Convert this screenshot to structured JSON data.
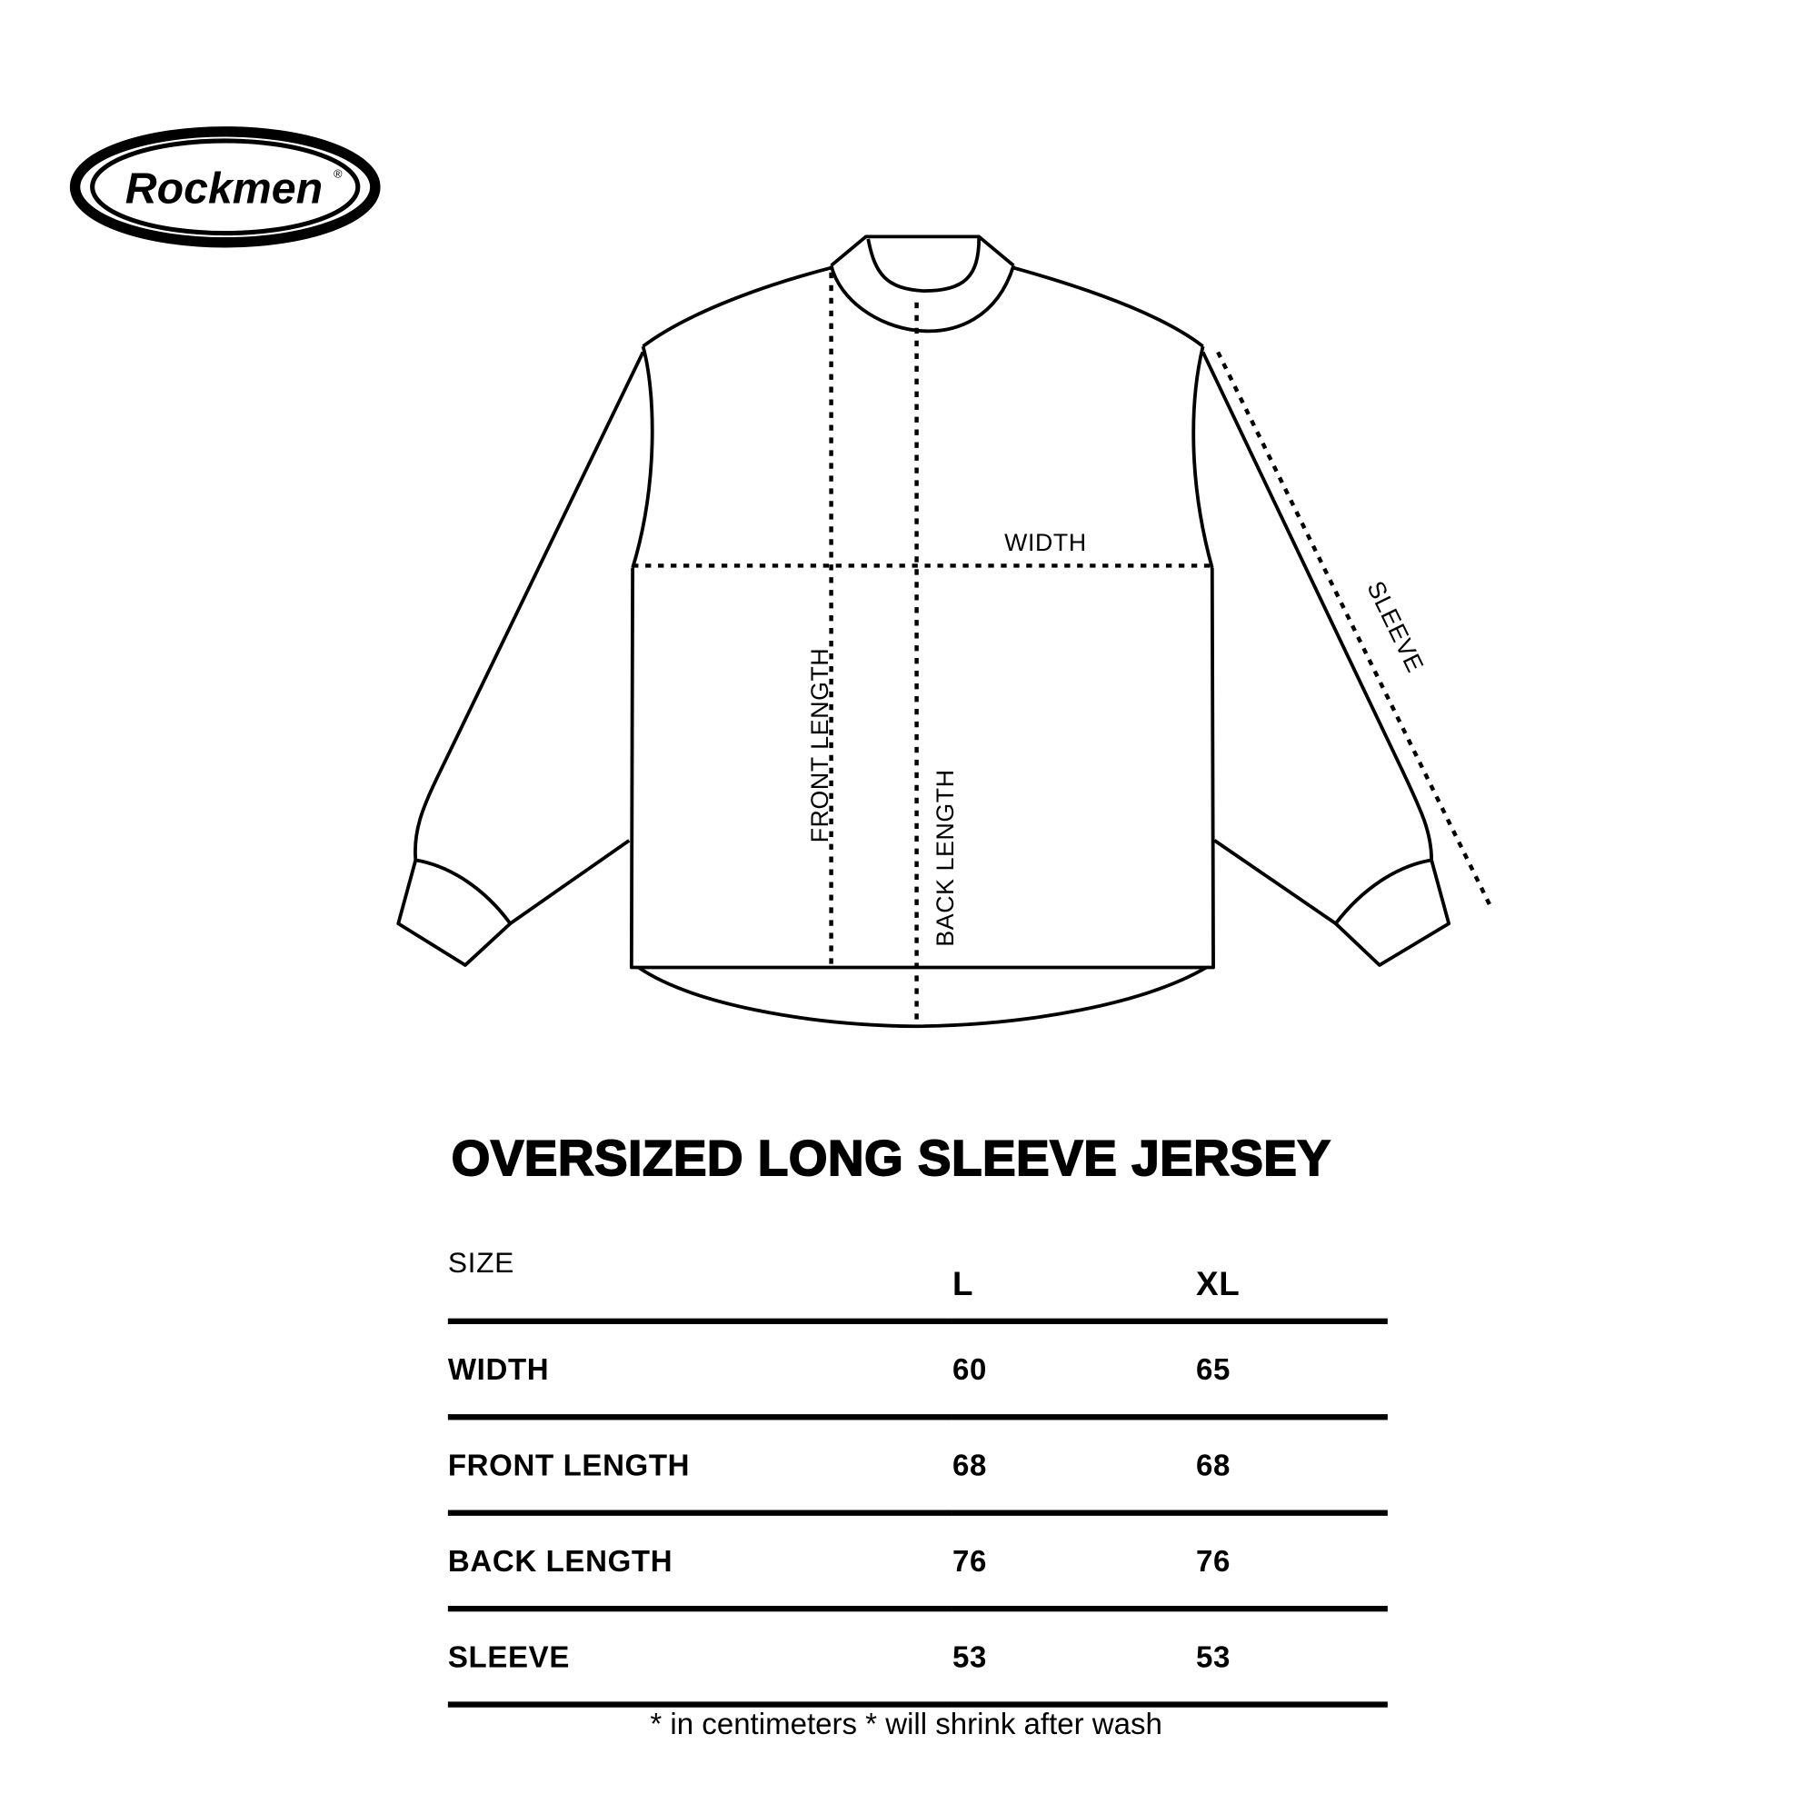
{
  "brand": {
    "logo_text": "Rockmen"
  },
  "diagram": {
    "labels": {
      "width": "WIDTH",
      "front_length": "FRONT LENGTH",
      "back_length": "BACK LENGTH",
      "sleeve": "SLEEVE"
    }
  },
  "title": "OVERSIZED LONG SLEEVE JERSEY",
  "size_table": {
    "header": {
      "label": "SIZE",
      "sizes": [
        "L",
        "XL"
      ]
    },
    "rows": [
      {
        "name": "WIDTH",
        "values": [
          "60",
          "65"
        ]
      },
      {
        "name": "FRONT LENGTH",
        "values": [
          "68",
          "68"
        ]
      },
      {
        "name": "BACK LENGTH",
        "values": [
          "76",
          "76"
        ]
      },
      {
        "name": "SLEEVE",
        "values": [
          "53",
          "53"
        ]
      }
    ]
  },
  "note": "* in centimeters * will shrink after wash"
}
